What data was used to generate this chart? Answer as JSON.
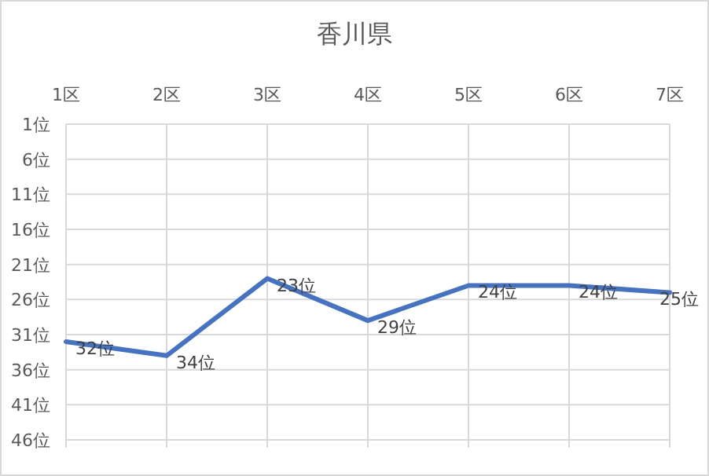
{
  "chart_data": {
    "type": "line",
    "title": "香川県",
    "categories": [
      "1区",
      "2区",
      "3区",
      "4区",
      "5区",
      "6区",
      "7区"
    ],
    "values": [
      32,
      34,
      23,
      29,
      24,
      24,
      25
    ],
    "value_labels": [
      "32位",
      "34位",
      "23位",
      "29位",
      "24位",
      "24位",
      "25位"
    ],
    "color": "#4472c4",
    "ylim": [
      46,
      1
    ],
    "yticks": [
      {
        "value": 1,
        "label": "1位"
      },
      {
        "value": 6,
        "label": "6位"
      },
      {
        "value": 11,
        "label": "11位"
      },
      {
        "value": 16,
        "label": "16位"
      },
      {
        "value": 21,
        "label": "21位"
      },
      {
        "value": 26,
        "label": "26位"
      },
      {
        "value": 31,
        "label": "31位"
      },
      {
        "value": 36,
        "label": "36位"
      },
      {
        "value": 41,
        "label": "41位"
      },
      {
        "value": 46,
        "label": "46位"
      }
    ],
    "grid": true,
    "marker": "none",
    "line_style": "solid"
  }
}
